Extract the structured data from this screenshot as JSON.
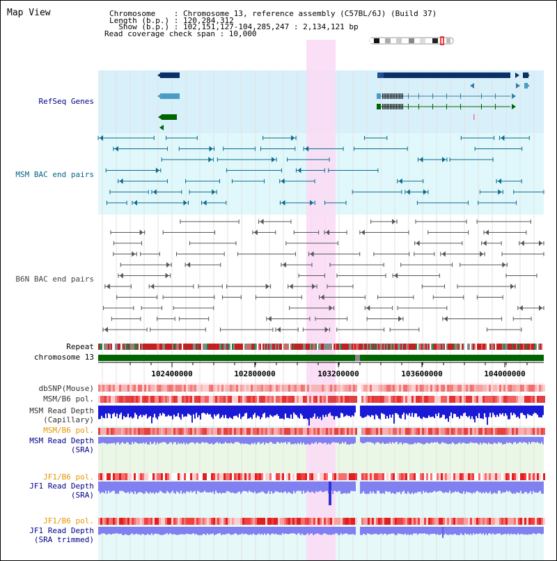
{
  "view": {
    "title": "Map View",
    "info": [
      "Chromosome    : Chromosome 13, reference assembly (C57BL/6J) (Build 37)",
      "Length (b.p.) : 120,284,312",
      "  Show (b.p.) : 102,151,127-104,285,247 : 2,134,121 bp",
      "Read coverage check span : 10,000"
    ]
  },
  "tracks": {
    "refseq": {
      "label": "RefSeq Genes",
      "color": "#00008b"
    },
    "msm_bac": {
      "label": "MSM BAC end pairs",
      "color": "#006688"
    },
    "b6n_bac": {
      "label": "B6N BAC end pairs",
      "color": "#444444"
    },
    "repeat": {
      "label": "Repeat"
    },
    "chromosome": {
      "label": "chromosome 13"
    },
    "dbsnp": {
      "label": "dbSNP(Mouse)"
    },
    "msm_b6_pol_cap": {
      "label": "MSM/B6 pol."
    },
    "msm_depth_cap": {
      "label_line1": "MSM Read Depth",
      "label_line2": "(Capillary)"
    },
    "msm_b6_pol_sra": {
      "label": "MSM/B6 pol.",
      "color": "#e69500"
    },
    "msm_depth_sra": {
      "label_line1": "MSM Read Depth",
      "label_line2": "(SRA)",
      "color": "#00008b"
    },
    "jf1_b6_pol": {
      "label": "JF1/B6 pol.",
      "color": "#e69500"
    },
    "jf1_depth_sra": {
      "label_line1": "JF1 Read Depth",
      "label_line2": "(SRA)",
      "color": "#00008b"
    },
    "jf1_b6_pol_trim": {
      "label": "JF1/B6 pol.",
      "color": "#e69500"
    },
    "jf1_depth_trim": {
      "label_line1": "JF1 Read Depth",
      "label_line2": "(SRA trimmed)",
      "color": "#00008b"
    }
  },
  "axis": {
    "ticks": [
      "102400000",
      "102800000",
      "103200000",
      "103600000",
      "104000000"
    ]
  },
  "colors": {
    "refseq_bg": "#d8f0fa",
    "msm_bg": "#e0f8fb",
    "highlight": "#fadcf5",
    "chrom_bar": "#006400",
    "gene_dark": "#0b2f66",
    "gene_light": "#4a9cc4",
    "gene_green": "#006400",
    "depth_capillary": "#1a1ad6",
    "depth_sra": "#8080f0"
  }
}
